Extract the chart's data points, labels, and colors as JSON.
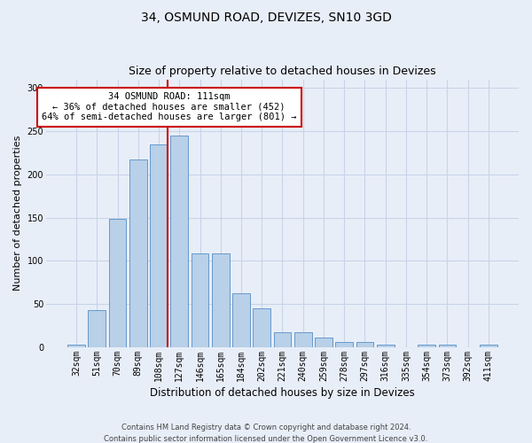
{
  "title": "34, OSMUND ROAD, DEVIZES, SN10 3GD",
  "subtitle": "Size of property relative to detached houses in Devizes",
  "xlabel": "Distribution of detached houses by size in Devizes",
  "ylabel": "Number of detached properties",
  "footer_line1": "Contains HM Land Registry data © Crown copyright and database right 2024.",
  "footer_line2": "Contains public sector information licensed under the Open Government Licence v3.0.",
  "categories": [
    "32sqm",
    "51sqm",
    "70sqm",
    "89sqm",
    "108sqm",
    "127sqm",
    "146sqm",
    "165sqm",
    "184sqm",
    "202sqm",
    "221sqm",
    "240sqm",
    "259sqm",
    "278sqm",
    "297sqm",
    "316sqm",
    "335sqm",
    "354sqm",
    "373sqm",
    "392sqm",
    "411sqm"
  ],
  "values": [
    3,
    43,
    149,
    217,
    235,
    245,
    109,
    109,
    63,
    45,
    17,
    17,
    11,
    6,
    6,
    3,
    0,
    3,
    3,
    0,
    3
  ],
  "bar_color": "#b8d0e8",
  "bar_edge_color": "#6699cc",
  "vline_color": "#cc0000",
  "vline_bar_index": 4,
  "annotation_line1": "34 OSMUND ROAD: 111sqm",
  "annotation_line2": "← 36% of detached houses are smaller (452)",
  "annotation_line3": "64% of semi-detached houses are larger (801) →",
  "annotation_box_edge_color": "#cc0000",
  "annotation_box_face_color": "#ffffff",
  "ylim": [
    0,
    310
  ],
  "yticks": [
    0,
    50,
    100,
    150,
    200,
    250,
    300
  ],
  "grid_color": "#c8d4e8",
  "bg_color": "#e8eef8",
  "title_fontsize": 10,
  "subtitle_fontsize": 9,
  "xlabel_fontsize": 8.5,
  "ylabel_fontsize": 8,
  "tick_fontsize": 7,
  "annotation_fontsize": 7.5,
  "footer_fontsize": 6,
  "bar_width": 0.85
}
